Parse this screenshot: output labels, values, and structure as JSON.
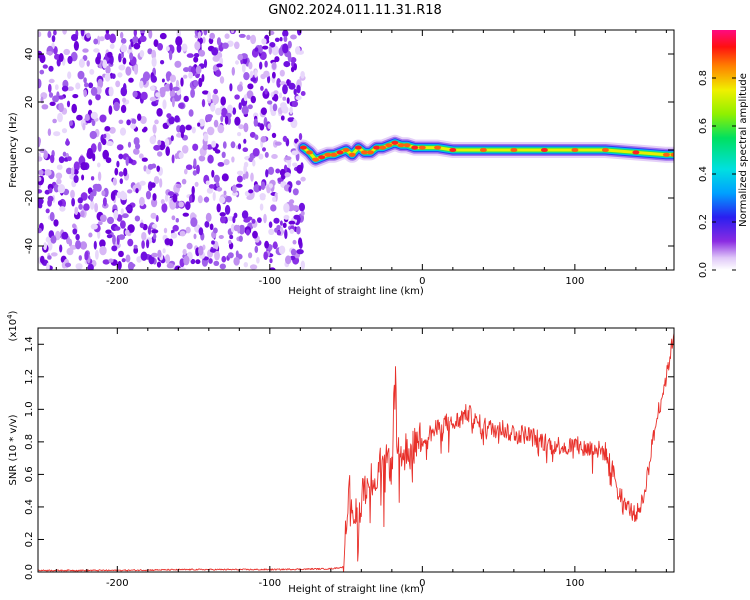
{
  "title": "GN02.2024.011.11.31.R18",
  "colors": {
    "snr_line": "#e8302a",
    "noise_purple": "#7a2be0",
    "axis": "#000000"
  },
  "chart_data": [
    {
      "type": "heatmap",
      "name": "spectrogram",
      "xlabel": "Height of straight line (km)",
      "ylabel": "Frequency (Hz)",
      "xlim": [
        -252,
        165
      ],
      "ylim": [
        -50,
        50
      ],
      "x_ticks": [
        "-200",
        "-100",
        "0",
        "100"
      ],
      "x_tick_values": [
        -200,
        -100,
        0,
        100
      ],
      "y_ticks": [
        "-40",
        "-20",
        "0",
        "20",
        "40"
      ],
      "y_tick_values": [
        -40,
        -20,
        0,
        20,
        40
      ],
      "noise_region_x": [
        -252,
        -78
      ],
      "signal_track": {
        "x": [
          -78,
          -74,
          -70,
          -66,
          -62,
          -58,
          -54,
          -50,
          -46,
          -42,
          -38,
          -34,
          -30,
          -26,
          -22,
          -18,
          -14,
          -10,
          -5,
          0,
          10,
          20,
          40,
          60,
          80,
          100,
          120,
          140,
          160,
          165
        ],
        "y": [
          1,
          -1,
          -4,
          -3,
          -2,
          -2,
          -1,
          0,
          -2,
          1,
          -1,
          -1,
          1,
          1,
          2,
          3,
          2,
          2,
          1,
          1,
          1,
          0,
          0,
          0,
          0,
          0,
          0,
          -1,
          -2,
          -2
        ]
      },
      "colorbar": {
        "label": "Normalized spectral amplitude",
        "ticks": [
          "0.0",
          "0.2",
          "0.4",
          "0.6",
          "0.8"
        ],
        "tick_values": [
          0.0,
          0.2,
          0.4,
          0.6,
          0.8
        ],
        "range": [
          0,
          1
        ]
      },
      "legend": "none",
      "grid": false
    },
    {
      "type": "line",
      "name": "snr",
      "xlabel": "Height of straight line (km)",
      "ylabel": "SNR (10 * v/v)",
      "exponent_label": "(x10",
      "exponent_power": "4",
      "exponent_close": ")",
      "xlim": [
        -252,
        165
      ],
      "ylim": [
        0,
        1.5
      ],
      "x_ticks": [
        "-200",
        "-100",
        "0",
        "100"
      ],
      "x_tick_values": [
        -200,
        -100,
        0,
        100
      ],
      "y_ticks": [
        "0.0",
        "0.2",
        "0.4",
        "0.6",
        "0.8",
        "1.0",
        "1.2",
        "1.4"
      ],
      "y_tick_values": [
        0.0,
        0.2,
        0.4,
        0.6,
        0.8,
        1.0,
        1.2,
        1.4
      ],
      "series": [
        {
          "x": [
            -252,
            -200,
            -150,
            -100,
            -60,
            -52,
            -50,
            -48,
            -45,
            -42,
            -40,
            -38,
            -35,
            -32,
            -30,
            -28,
            -26,
            -24,
            -22,
            -20,
            -18,
            -16,
            -14,
            -12,
            -10,
            -8,
            -5,
            0,
            5,
            10,
            15,
            20,
            25,
            30,
            35,
            40,
            45,
            50,
            55,
            60,
            65,
            70,
            75,
            80,
            85,
            90,
            95,
            100,
            105,
            110,
            115,
            120,
            125,
            130,
            135,
            140,
            145,
            150,
            155,
            160,
            165
          ],
          "y": [
            0.01,
            0.01,
            0.015,
            0.015,
            0.02,
            0.03,
            0.35,
            0.5,
            0.38,
            0.3,
            0.45,
            0.55,
            0.5,
            0.62,
            0.55,
            0.7,
            0.6,
            0.65,
            0.72,
            0.6,
            1.3,
            0.7,
            0.75,
            0.68,
            0.8,
            0.72,
            0.78,
            0.82,
            0.85,
            0.88,
            0.92,
            0.9,
            0.95,
            0.98,
            0.92,
            0.9,
            0.88,
            0.9,
            0.87,
            0.86,
            0.85,
            0.84,
            0.82,
            0.8,
            0.78,
            0.78,
            0.77,
            0.78,
            0.76,
            0.76,
            0.75,
            0.74,
            0.62,
            0.48,
            0.4,
            0.35,
            0.45,
            0.75,
            1.0,
            1.2,
            1.47
          ]
        }
      ],
      "legend": "none",
      "grid": false
    }
  ]
}
